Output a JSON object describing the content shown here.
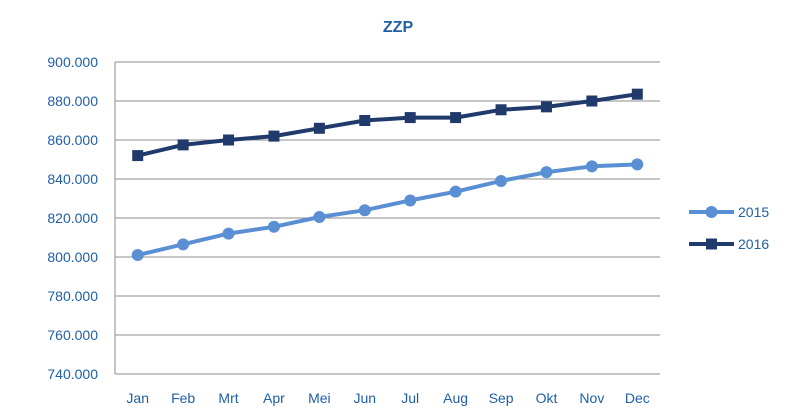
{
  "chart_data": {
    "type": "line",
    "title": "ZZP",
    "xlabel": "",
    "ylabel": "",
    "categories": [
      "Jan",
      "Feb",
      "Mrt",
      "Apr",
      "Mei",
      "Jun",
      "Jul",
      "Aug",
      "Sep",
      "Okt",
      "Nov",
      "Dec"
    ],
    "ylim": [
      740000,
      900000
    ],
    "yticks": [
      740000,
      760000,
      780000,
      800000,
      820000,
      840000,
      860000,
      880000,
      900000
    ],
    "ytick_labels": [
      "740.000",
      "760.000",
      "780.000",
      "800.000",
      "820.000",
      "840.000",
      "860.000",
      "880.000",
      "900.000"
    ],
    "grid": true,
    "legend_position": "right",
    "series": [
      {
        "name": "2015",
        "color": "#5b8fd3",
        "marker": "circle",
        "values": [
          801000,
          806500,
          812000,
          815500,
          820500,
          824000,
          829000,
          833500,
          839000,
          843500,
          846500,
          847500
        ]
      },
      {
        "name": "2016",
        "color": "#1f3a6b",
        "marker": "square",
        "values": [
          852000,
          857500,
          860000,
          862000,
          866000,
          870000,
          871500,
          871500,
          875500,
          877000,
          880000,
          883500
        ]
      }
    ]
  }
}
